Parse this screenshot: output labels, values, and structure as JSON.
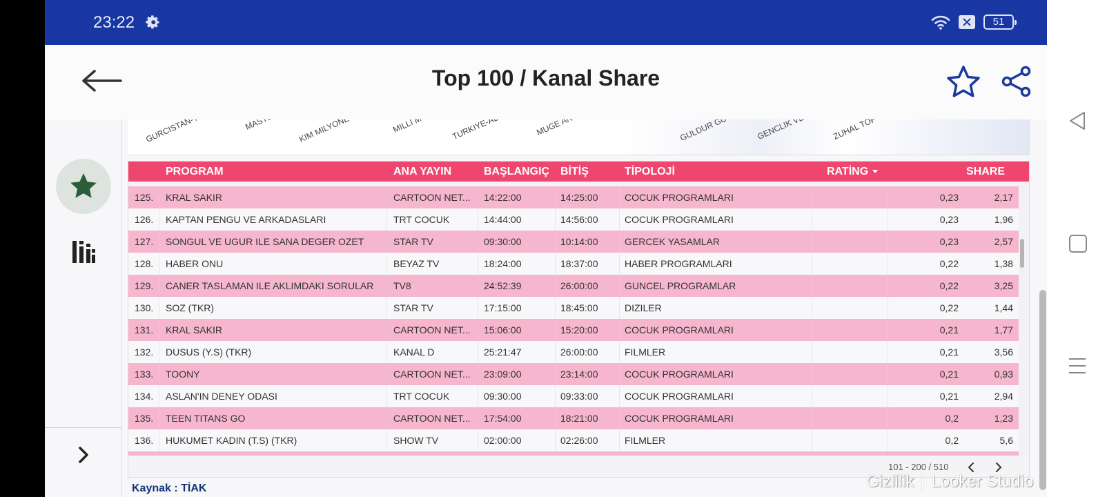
{
  "status_bar": {
    "time": "23:22",
    "battery": "51"
  },
  "header": {
    "title": "Top 100  / Kanal Share"
  },
  "chart_axis_labels": [
    "GURCISTAN-T",
    "MASTE",
    "KIM MILYONE",
    "MILLI M",
    "TURKIYE-AL",
    "MUGE AN",
    "GULDUR GU",
    "GENCLIK VE",
    "ZUHAL TOP"
  ],
  "table": {
    "columns": {
      "program": "PROGRAM",
      "ana_yayin": "ANA YAYIN",
      "baslangic": "BAŞLANGIÇ",
      "bitis": "BİTİŞ",
      "tipoloji": "TİPOLOJİ",
      "rating": "RATİNG",
      "share": "SHARE"
    },
    "rows": [
      {
        "no": "125.",
        "program": "KRAL SAKIR",
        "channel": "CARTOON NET...",
        "start": "14:22:00",
        "end": "14:25:00",
        "type": "COCUK PROGRAMLARI",
        "rating": "0,23",
        "share": "2,17"
      },
      {
        "no": "126.",
        "program": "KAPTAN PENGU VE ARKADASLARI",
        "channel": "TRT COCUK",
        "start": "14:44:00",
        "end": "14:56:00",
        "type": "COCUK PROGRAMLARI",
        "rating": "0,23",
        "share": "1,96"
      },
      {
        "no": "127.",
        "program": "SONGUL VE UGUR ILE SANA DEGER OZET",
        "channel": "STAR TV",
        "start": "09:30:00",
        "end": "10:14:00",
        "type": "GERCEK YASAMLAR",
        "rating": "0,23",
        "share": "2,57"
      },
      {
        "no": "128.",
        "program": "HABER ONU",
        "channel": "BEYAZ TV",
        "start": "18:24:00",
        "end": "18:37:00",
        "type": "HABER PROGRAMLARI",
        "rating": "0,22",
        "share": "1,38"
      },
      {
        "no": "129.",
        "program": "CANER TASLAMAN ILE AKLIMDAKI SORULAR",
        "channel": "TV8",
        "start": "24:52:39",
        "end": "26:00:00",
        "type": "GUNCEL PROGRAMLAR",
        "rating": "0,22",
        "share": "3,25"
      },
      {
        "no": "130.",
        "program": "SOZ (TKR)",
        "channel": "STAR TV",
        "start": "17:15:00",
        "end": "18:45:00",
        "type": "DIZILER",
        "rating": "0,22",
        "share": "1,44"
      },
      {
        "no": "131.",
        "program": "KRAL SAKIR",
        "channel": "CARTOON NET...",
        "start": "15:06:00",
        "end": "15:20:00",
        "type": "COCUK PROGRAMLARI",
        "rating": "0,21",
        "share": "1,77"
      },
      {
        "no": "132.",
        "program": "DUSUS (Y.S) (TKR)",
        "channel": "KANAL D",
        "start": "25:21:47",
        "end": "26:00:00",
        "type": "FILMLER",
        "rating": "0,21",
        "share": "3,56"
      },
      {
        "no": "133.",
        "program": "TOONY",
        "channel": "CARTOON NET...",
        "start": "23:09:00",
        "end": "23:14:00",
        "type": "COCUK PROGRAMLARI",
        "rating": "0,21",
        "share": "0,93"
      },
      {
        "no": "134.",
        "program": "ASLAN'IN DENEY ODASI",
        "channel": "TRT COCUK",
        "start": "09:30:00",
        "end": "09:33:00",
        "type": "COCUK PROGRAMLARI",
        "rating": "0,21",
        "share": "2,94"
      },
      {
        "no": "135.",
        "program": "TEEN TITANS GO",
        "channel": "CARTOON NET...",
        "start": "17:54:00",
        "end": "18:21:00",
        "type": "COCUK PROGRAMLARI",
        "rating": "0,2",
        "share": "1,23"
      },
      {
        "no": "136.",
        "program": "HUKUMET KADIN (T.S) (TKR)",
        "channel": "SHOW TV",
        "start": "02:00:00",
        "end": "02:26:00",
        "type": "FILMLER",
        "rating": "0,2",
        "share": "5,6"
      }
    ],
    "pagination": "101 - 200 / 510"
  },
  "source": "Kaynak : TİAK",
  "brand": {
    "left": "Gizlilik",
    "right": "Looker Studio"
  },
  "colors": {
    "status_bar": "#1837a3",
    "table_header": "#ef4670",
    "row_pink": "#f6b6cd",
    "accent": "#1a3a9c"
  }
}
